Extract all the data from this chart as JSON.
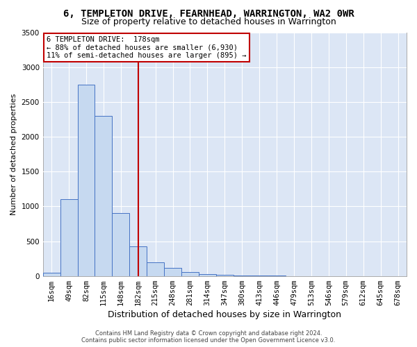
{
  "title_line1": "6, TEMPLETON DRIVE, FEARNHEAD, WARRINGTON, WA2 0WR",
  "title_line2": "Size of property relative to detached houses in Warrington",
  "xlabel": "Distribution of detached houses by size in Warrington",
  "ylabel": "Number of detached properties",
  "footer_line1": "Contains HM Land Registry data © Crown copyright and database right 2024.",
  "footer_line2": "Contains public sector information licensed under the Open Government Licence v3.0.",
  "bin_labels": [
    "16sqm",
    "49sqm",
    "82sqm",
    "115sqm",
    "148sqm",
    "182sqm",
    "215sqm",
    "248sqm",
    "281sqm",
    "314sqm",
    "347sqm",
    "380sqm",
    "413sqm",
    "446sqm",
    "479sqm",
    "513sqm",
    "546sqm",
    "579sqm",
    "612sqm",
    "645sqm",
    "678sqm"
  ],
  "bar_values": [
    50,
    1100,
    2750,
    2300,
    900,
    430,
    200,
    120,
    60,
    30,
    15,
    8,
    5,
    2,
    1,
    1,
    0,
    0,
    0,
    0,
    0
  ],
  "bar_color": "#c6d9f0",
  "bar_edge_color": "#4472c4",
  "vline_color": "#c00000",
  "annotation_text": "6 TEMPLETON DRIVE:  178sqm\n← 88% of detached houses are smaller (6,930)\n11% of semi-detached houses are larger (895) →",
  "annotation_box_color": "#ffffff",
  "annotation_border_color": "#c00000",
  "ylim": [
    0,
    3500
  ],
  "yticks": [
    0,
    500,
    1000,
    1500,
    2000,
    2500,
    3000,
    3500
  ],
  "fig_bg_color": "#ffffff",
  "plot_bg_color": "#dce6f5",
  "grid_color": "#ffffff",
  "title_fontsize": 10,
  "subtitle_fontsize": 9,
  "tick_fontsize": 7.5,
  "ylabel_fontsize": 8,
  "xlabel_fontsize": 9
}
